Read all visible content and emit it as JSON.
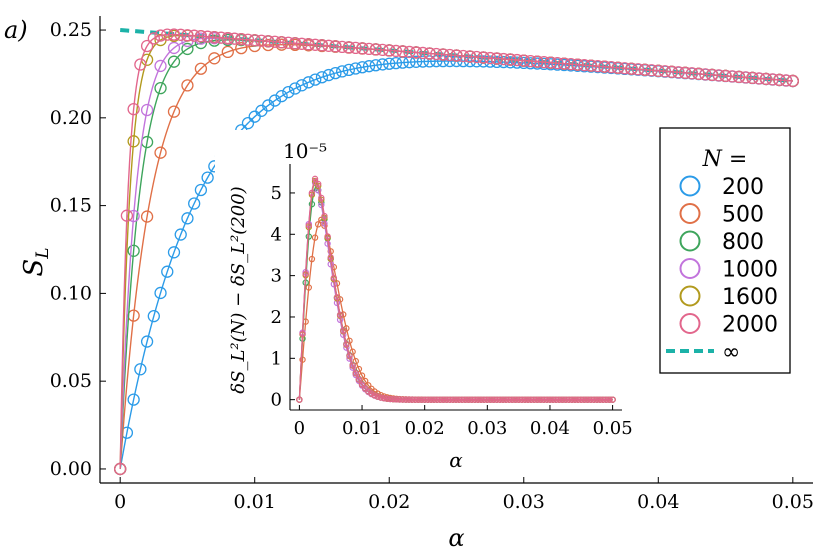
{
  "panel_label": "a)",
  "colors": {
    "200": "#2b9be8",
    "500": "#e07047",
    "800": "#3ea55c",
    "1000": "#c274dc",
    "1600": "#b29a1e",
    "2000": "#e2668c",
    "inf": "#1cb2a8"
  },
  "chart_data": [
    {
      "id": "main",
      "type": "line",
      "title": "",
      "xlabel": "α",
      "ylabel": "S_L",
      "xlim": [
        -0.0015,
        0.0515
      ],
      "ylim": [
        -0.008,
        0.258
      ],
      "xticks": [
        0.0,
        0.01,
        0.02,
        0.03,
        0.04,
        0.05
      ],
      "xtick_labels": [
        "0",
        "0.01",
        "0.02",
        "0.03",
        "0.04",
        "0.05"
      ],
      "yticks": [
        0.0,
        0.05,
        0.1,
        0.15,
        0.2,
        0.25
      ],
      "ytick_labels": [
        "0.00",
        "0.05",
        "0.10",
        "0.15",
        "0.20",
        "0.25"
      ],
      "grid": false,
      "legend": {
        "title": "N =",
        "placement": "right",
        "entries": [
          "200",
          "500",
          "800",
          "1000",
          "1600",
          "2000",
          "∞"
        ]
      },
      "series": [
        {
          "name": "200",
          "tau": 0.0058,
          "sample_step": 0.0005
        },
        {
          "name": "500",
          "tau": 0.00232,
          "sample_step": 0.001
        },
        {
          "name": "800",
          "tau": 0.00145,
          "sample_step": 0.001
        },
        {
          "name": "1000",
          "tau": 0.00116,
          "sample_step": 0.001
        },
        {
          "name": "1600",
          "tau": 0.000725,
          "sample_step": 0.001
        },
        {
          "name": "2000",
          "tau": 0.00058,
          "sample_step": 0.0005
        },
        {
          "name": "∞",
          "style": "dashed",
          "x": [
            0,
            0.05
          ],
          "y": [
            0.25,
            0.221
          ]
        }
      ]
    },
    {
      "id": "inset",
      "type": "line",
      "xlabel": "α",
      "ylabel": "δS_L²(N) − δS_L²(200)",
      "y_multiplier_label": "10⁻⁵",
      "xlim": [
        -0.0015,
        0.0515
      ],
      "ylim": [
        -0.25,
        5.7
      ],
      "xticks": [
        0.0,
        0.01,
        0.02,
        0.03,
        0.04,
        0.05
      ],
      "xtick_labels": [
        "0",
        "0.01",
        "0.02",
        "0.03",
        "0.04",
        "0.05"
      ],
      "yticks": [
        0,
        1,
        2,
        3,
        4,
        5
      ],
      "ytick_labels": [
        "0",
        "1",
        "2",
        "3",
        "4",
        "5"
      ],
      "series": [
        {
          "name": "500",
          "peak": 4.35,
          "peak_x": 0.0035,
          "width": 0.0022,
          "decay": 0.0042
        },
        {
          "name": "800",
          "peak": 5.15,
          "peak_x": 0.0027,
          "width": 0.0015,
          "decay": 0.004
        },
        {
          "name": "1000",
          "peak": 5.25,
          "peak_x": 0.0025,
          "width": 0.0014,
          "decay": 0.004
        },
        {
          "name": "1600",
          "peak": 5.3,
          "peak_x": 0.0026,
          "width": 0.0013,
          "decay": 0.004
        },
        {
          "name": "2000",
          "peak": 5.35,
          "peak_x": 0.0026,
          "width": 0.0013,
          "decay": 0.004
        }
      ],
      "sample_step": 0.0005
    }
  ]
}
